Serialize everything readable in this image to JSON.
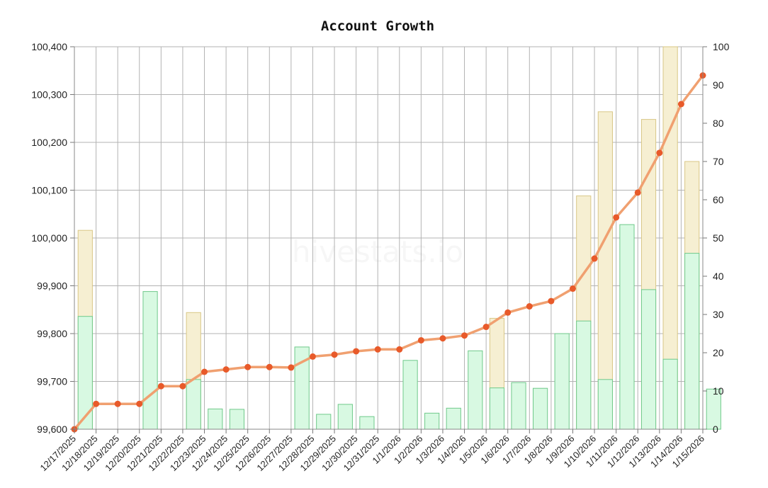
{
  "watermark": "hivestats.io",
  "chart_data": {
    "type": "bar",
    "title": "Account Growth",
    "xlabel": "",
    "ylabel": "",
    "y2label": "",
    "categories": [
      "12/17/2025",
      "12/18/2025",
      "12/19/2025",
      "12/20/2025",
      "12/21/2025",
      "12/22/2025",
      "12/23/2025",
      "12/24/2025",
      "12/25/2025",
      "12/26/2025",
      "12/27/2025",
      "12/28/2025",
      "12/29/2025",
      "12/30/2025",
      "12/31/2025",
      "1/1/2026",
      "1/2/2026",
      "1/3/2026",
      "1/4/2026",
      "1/5/2026",
      "1/6/2026",
      "1/7/2026",
      "1/8/2026",
      "1/9/2026",
      "1/10/2026",
      "1/11/2026",
      "1/12/2026",
      "1/13/2026",
      "1/14/2026",
      "1/15/2026"
    ],
    "ylim": [
      99600,
      100400
    ],
    "yticks": [
      99600,
      99700,
      99800,
      99900,
      100000,
      100100,
      100200,
      100300,
      100400
    ],
    "y2lim": [
      0,
      100
    ],
    "y2ticks": [
      0,
      10,
      20,
      30,
      40,
      50,
      60,
      70,
      80,
      90,
      100
    ],
    "grid": true,
    "legend": "none",
    "series": [
      {
        "type": "bar",
        "axis": "right",
        "color": "#e8d9a0",
        "values": [
          52,
          null,
          null,
          null,
          null,
          30.5,
          null,
          null,
          null,
          null,
          null,
          null,
          null,
          null,
          null,
          null,
          null,
          null,
          null,
          29,
          null,
          null,
          null,
          61,
          83,
          null,
          81,
          100,
          70,
          null
        ]
      },
      {
        "type": "bar",
        "axis": "right",
        "color": "#8fe0a8",
        "values": [
          29.5,
          null,
          null,
          36,
          null,
          13,
          5.3,
          5.2,
          null,
          null,
          21.5,
          3.9,
          6.5,
          3.3,
          null,
          18,
          4.2,
          5.5,
          20.5,
          10.8,
          12.2,
          10.7,
          25,
          28.3,
          13,
          53.5,
          36.5,
          18.3,
          46,
          10.5
        ]
      },
      {
        "type": "line",
        "axis": "left",
        "color": "#f0a070",
        "marker_color": "#e85a2a",
        "values": [
          99600,
          99653,
          99653,
          99653,
          99690,
          99690,
          99720,
          99725,
          99730,
          99730,
          99729,
          99752,
          99756,
          99763,
          99767,
          99767,
          99786,
          99790,
          99796,
          99814,
          99844,
          99857,
          99868,
          99894,
          99957,
          100043,
          100095,
          100178,
          100280,
          100340
        ]
      }
    ]
  }
}
